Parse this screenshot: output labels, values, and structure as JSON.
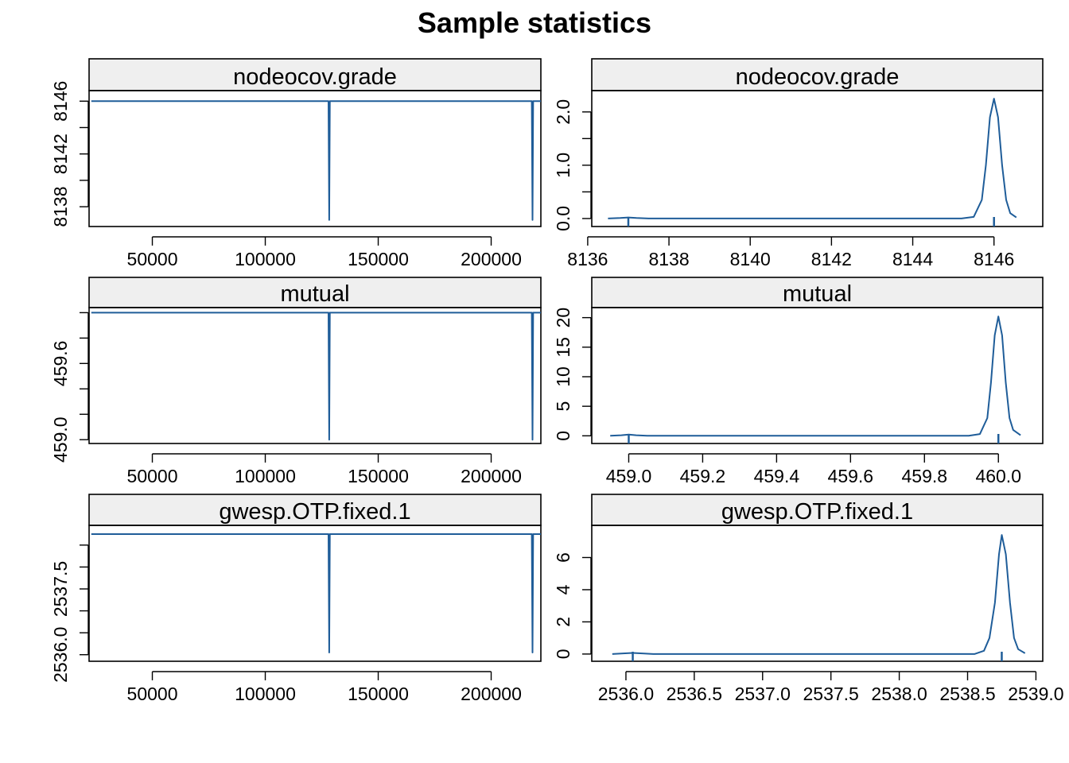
{
  "title": "Sample statistics",
  "colors": {
    "line": "#1f5d99",
    "strip": "#efefef",
    "frame": "#000000"
  },
  "chart_data": [
    {
      "type": "line",
      "panel": "trace",
      "title": "nodeocov.grade",
      "xlim": [
        22000,
        222000
      ],
      "ylim": [
        8136.5,
        8146.8
      ],
      "xticks": [
        50000,
        100000,
        150000,
        200000
      ],
      "xtick_labels": [
        "50000",
        "100000",
        "150000",
        "200000"
      ],
      "yticks": [
        8138,
        8140,
        8142,
        8144,
        8146
      ],
      "ytick_labels": [
        "8138",
        "",
        "8142",
        "",
        "8146"
      ],
      "series": [
        {
          "name": "nodeocov.grade",
          "x": [
            23000,
            128000,
            128300,
            128600,
            218000,
            218300,
            218600,
            222000
          ],
          "y": [
            8146,
            8146,
            8137,
            8146,
            8146,
            8137,
            8146,
            8146
          ]
        }
      ]
    },
    {
      "type": "line",
      "panel": "density",
      "title": "nodeocov.grade",
      "xlim": [
        8136.1,
        8147.2
      ],
      "ylim": [
        -0.15,
        2.4
      ],
      "xticks": [
        8136,
        8138,
        8140,
        8142,
        8144,
        8146
      ],
      "xtick_labels": [
        "8136",
        "8138",
        "8140",
        "8142",
        "8144",
        "8146"
      ],
      "yticks": [
        0.0,
        0.5,
        1.0,
        1.5,
        2.0
      ],
      "ytick_labels": [
        "0.0",
        "",
        "1.0",
        "",
        "2.0"
      ],
      "rug": [
        8137,
        8146
      ],
      "series": [
        {
          "name": "density",
          "x": [
            8136.5,
            8136.8,
            8137.0,
            8137.2,
            8137.5,
            8145.2,
            8145.5,
            8145.7,
            8145.8,
            8145.9,
            8146.0,
            8146.1,
            8146.2,
            8146.3,
            8146.4,
            8146.55
          ],
          "y": [
            0,
            0.01,
            0.02,
            0.01,
            0,
            0,
            0.03,
            0.35,
            1.0,
            1.9,
            2.25,
            1.9,
            1.0,
            0.35,
            0.1,
            0.02
          ]
        }
      ]
    },
    {
      "type": "line",
      "panel": "trace",
      "title": "mutual",
      "xlim": [
        22000,
        222000
      ],
      "ylim": [
        458.97,
        460.04
      ],
      "xticks": [
        50000,
        100000,
        150000,
        200000
      ],
      "xtick_labels": [
        "50000",
        "100000",
        "150000",
        "200000"
      ],
      "yticks": [
        459.0,
        459.2,
        459.4,
        459.6,
        459.8,
        460.0
      ],
      "ytick_labels": [
        "459.0",
        "",
        "",
        "459.6",
        "",
        ""
      ],
      "series": [
        {
          "name": "mutual",
          "x": [
            23000,
            128000,
            128300,
            128600,
            218000,
            218300,
            218600,
            222000
          ],
          "y": [
            460,
            460,
            459,
            460,
            460,
            459,
            460,
            460
          ]
        }
      ]
    },
    {
      "type": "line",
      "panel": "density",
      "title": "mutual",
      "xlim": [
        458.9,
        460.12
      ],
      "ylim": [
        -1.3,
        21.7
      ],
      "xticks": [
        459.0,
        459.2,
        459.4,
        459.6,
        459.8,
        460.0
      ],
      "xtick_labels": [
        "459.0",
        "459.2",
        "459.4",
        "459.6",
        "459.8",
        "460.0"
      ],
      "yticks": [
        0,
        5,
        10,
        15,
        20
      ],
      "ytick_labels": [
        "0",
        "5",
        "10",
        "15",
        "20"
      ],
      "rug": [
        459.0,
        460.0
      ],
      "series": [
        {
          "name": "density",
          "x": [
            458.95,
            458.98,
            459.0,
            459.02,
            459.05,
            459.92,
            459.95,
            459.97,
            459.98,
            459.99,
            460.0,
            460.01,
            460.02,
            460.03,
            460.04,
            460.06
          ],
          "y": [
            0,
            0.1,
            0.2,
            0.1,
            0,
            0,
            0.3,
            3,
            9,
            17,
            20.2,
            17,
            9,
            3,
            1,
            0.1
          ]
        }
      ]
    },
    {
      "type": "line",
      "panel": "trace",
      "title": "gwesp.OTP.fixed.1",
      "xlim": [
        22000,
        222000
      ],
      "ylim": [
        2535.85,
        2538.95
      ],
      "xticks": [
        50000,
        100000,
        150000,
        200000
      ],
      "xtick_labels": [
        "50000",
        "100000",
        "150000",
        "200000"
      ],
      "yticks": [
        2536.0,
        2536.5,
        2537.0,
        2537.5,
        2538.0,
        2538.5
      ],
      "ytick_labels": [
        "2536.0",
        "",
        "",
        "2537.5",
        "",
        ""
      ],
      "series": [
        {
          "name": "gwesp.OTP.fixed.1",
          "x": [
            23000,
            128000,
            128300,
            128600,
            218000,
            218300,
            218600,
            222000
          ],
          "y": [
            2538.75,
            2538.75,
            2536.05,
            2538.75,
            2538.75,
            2536.05,
            2538.75,
            2538.75
          ]
        }
      ]
    },
    {
      "type": "line",
      "panel": "density",
      "title": "gwesp.OTP.fixed.1",
      "xlim": [
        2535.75,
        2539.05
      ],
      "ylim": [
        -0.45,
        8.0
      ],
      "xticks": [
        2536.0,
        2536.5,
        2537.0,
        2537.5,
        2538.0,
        2538.5,
        2539.0
      ],
      "xtick_labels": [
        "2536.0",
        "2536.5",
        "2537.0",
        "2537.5",
        "2538.0",
        "2538.5",
        "2539.0"
      ],
      "yticks": [
        0,
        2,
        4,
        6
      ],
      "ytick_labels": [
        "0",
        "2",
        "4",
        "6"
      ],
      "rug": [
        2536.05,
        2538.75
      ],
      "series": [
        {
          "name": "density",
          "x": [
            2535.9,
            2535.98,
            2536.05,
            2536.12,
            2536.2,
            2538.55,
            2538.62,
            2538.66,
            2538.7,
            2538.73,
            2538.75,
            2538.78,
            2538.81,
            2538.84,
            2538.87,
            2538.92
          ],
          "y": [
            0,
            0.04,
            0.07,
            0.04,
            0,
            0,
            0.2,
            1.0,
            3.2,
            6.2,
            7.4,
            6.2,
            3.2,
            1.0,
            0.3,
            0.05
          ]
        }
      ]
    }
  ]
}
